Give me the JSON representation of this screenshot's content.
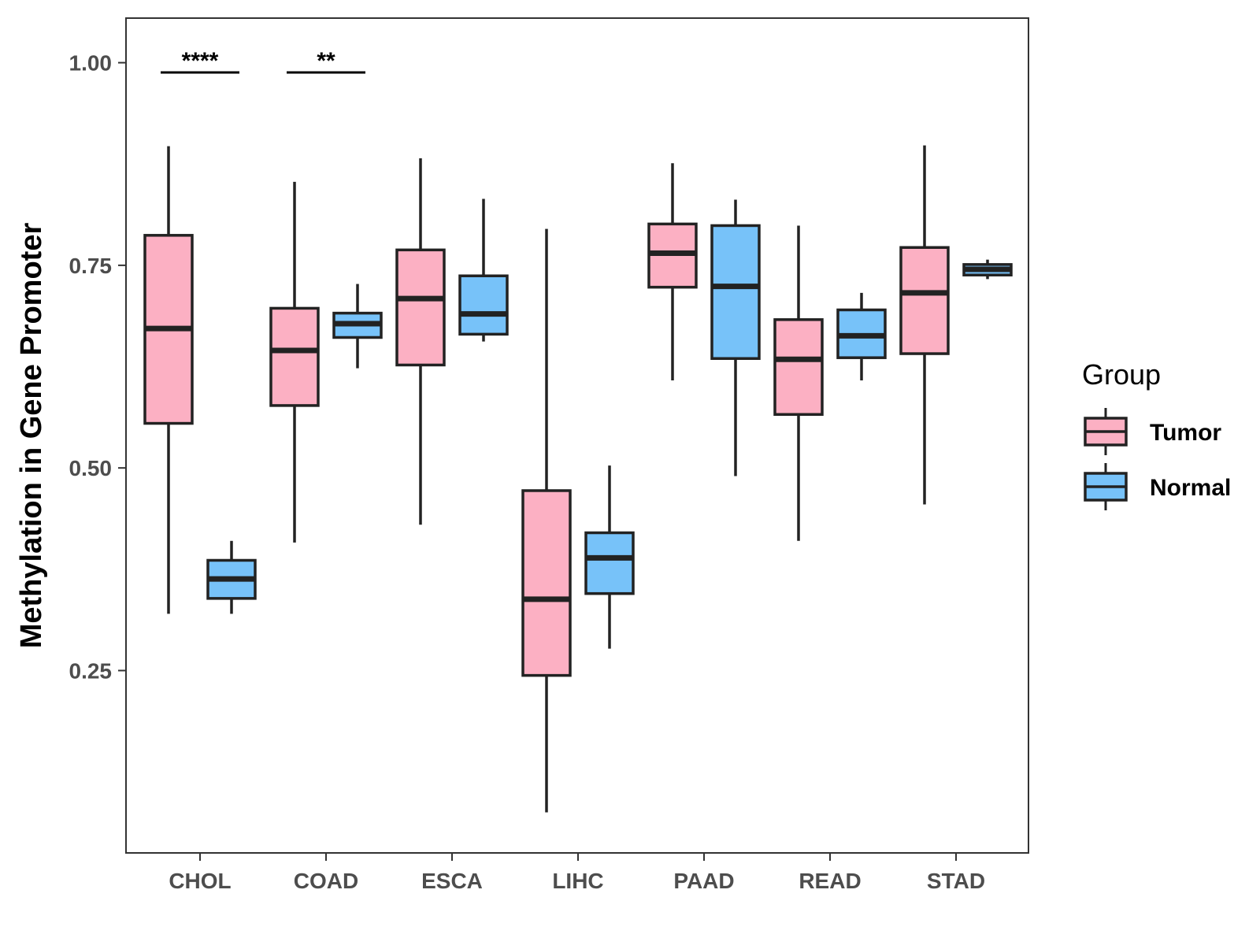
{
  "chart_data": {
    "type": "boxplot",
    "ylabel": "Methylation in Gene Promoter",
    "xlabel": "",
    "ylim": [
      0.025,
      1.055
    ],
    "yticks": [
      0.25,
      0.5,
      0.75,
      1.0
    ],
    "ytick_labels": [
      "0.25",
      "0.50",
      "0.75",
      "1.00"
    ],
    "categories": [
      "CHOL",
      "COAD",
      "ESCA",
      "LIHC",
      "PAAD",
      "READ",
      "STAD"
    ],
    "legend": {
      "title": "Group",
      "position": "right",
      "entries": [
        {
          "name": "Tumor",
          "color": "#FCB0C3"
        },
        {
          "name": "Normal",
          "color": "#77C2F9"
        }
      ]
    },
    "series": [
      {
        "name": "Tumor",
        "color": "#FCB0C3",
        "boxes": [
          {
            "category": "CHOL",
            "min": 0.32,
            "q1": 0.555,
            "median": 0.672,
            "q3": 0.787,
            "max": 0.897
          },
          {
            "category": "COAD",
            "min": 0.408,
            "q1": 0.577,
            "median": 0.645,
            "q3": 0.697,
            "max": 0.853
          },
          {
            "category": "ESCA",
            "min": 0.43,
            "q1": 0.627,
            "median": 0.709,
            "q3": 0.769,
            "max": 0.882
          },
          {
            "category": "LIHC",
            "min": 0.075,
            "q1": 0.244,
            "median": 0.338,
            "q3": 0.472,
            "max": 0.795
          },
          {
            "category": "PAAD",
            "min": 0.608,
            "q1": 0.723,
            "median": 0.765,
            "q3": 0.801,
            "max": 0.876
          },
          {
            "category": "READ",
            "min": 0.41,
            "q1": 0.566,
            "median": 0.634,
            "q3": 0.683,
            "max": 0.799
          },
          {
            "category": "STAD",
            "min": 0.455,
            "q1": 0.641,
            "median": 0.716,
            "q3": 0.772,
            "max": 0.898
          }
        ]
      },
      {
        "name": "Normal",
        "color": "#77C2F9",
        "boxes": [
          {
            "category": "CHOL",
            "min": 0.32,
            "q1": 0.339,
            "median": 0.363,
            "q3": 0.386,
            "max": 0.41
          },
          {
            "category": "COAD",
            "min": 0.623,
            "q1": 0.661,
            "median": 0.678,
            "q3": 0.691,
            "max": 0.727
          },
          {
            "category": "ESCA",
            "min": 0.656,
            "q1": 0.665,
            "median": 0.69,
            "q3": 0.737,
            "max": 0.832
          },
          {
            "category": "LIHC",
            "min": 0.277,
            "q1": 0.345,
            "median": 0.389,
            "q3": 0.42,
            "max": 0.503
          },
          {
            "category": "PAAD",
            "min": 0.49,
            "q1": 0.635,
            "median": 0.724,
            "q3": 0.799,
            "max": 0.831
          },
          {
            "category": "READ",
            "min": 0.608,
            "q1": 0.636,
            "median": 0.663,
            "q3": 0.695,
            "max": 0.716
          },
          {
            "category": "STAD",
            "min": 0.733,
            "q1": 0.738,
            "median": 0.745,
            "q3": 0.751,
            "max": 0.757
          }
        ]
      }
    ],
    "annotations": [
      {
        "category": "CHOL",
        "label": "****",
        "y": 0.988
      },
      {
        "category": "COAD",
        "label": "**",
        "y": 0.988
      }
    ]
  }
}
